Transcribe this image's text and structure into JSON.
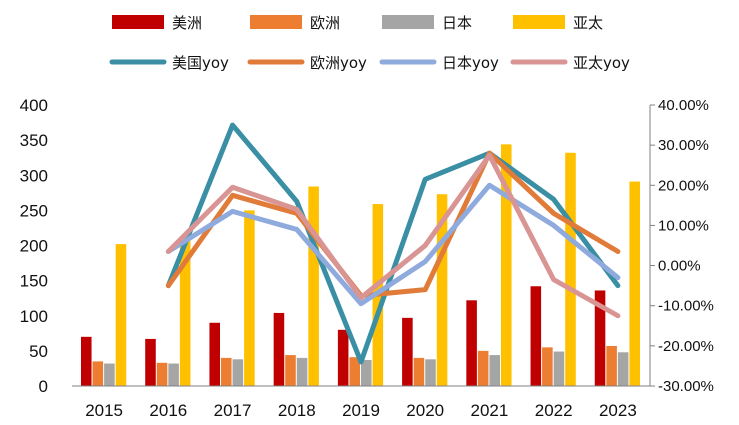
{
  "chart_data": {
    "type": "bar",
    "categories": [
      "2015",
      "2016",
      "2017",
      "2018",
      "2019",
      "2020",
      "2021",
      "2022",
      "2023"
    ],
    "series": [
      {
        "name": "美洲",
        "type": "bar",
        "axis": "left",
        "color": "#c00000",
        "values": [
          70,
          67,
          90,
          104,
          80,
          97,
          122,
          142,
          136
        ]
      },
      {
        "name": "欧洲",
        "type": "bar",
        "axis": "left",
        "color": "#ed7d31",
        "values": [
          35,
          33,
          40,
          44,
          41,
          40,
          50,
          55,
          57
        ]
      },
      {
        "name": "日本",
        "type": "bar",
        "axis": "left",
        "color": "#a5a5a5",
        "values": [
          32,
          32,
          38,
          40,
          37,
          38,
          44,
          49,
          48
        ]
      },
      {
        "name": "亚太",
        "type": "bar",
        "axis": "left",
        "color": "#ffc000",
        "values": [
          202,
          210,
          250,
          284,
          259,
          273,
          344,
          332,
          291
        ]
      },
      {
        "name": "美国yoy",
        "type": "line",
        "axis": "right",
        "color": "#3a8fa5",
        "values": [
          null,
          -5.0,
          35.0,
          16.0,
          -24.0,
          21.5,
          28.0,
          16.5,
          -5.0
        ]
      },
      {
        "name": "欧洲yoy",
        "type": "line",
        "axis": "right",
        "color": "#e07b39",
        "values": [
          null,
          -5.0,
          17.5,
          13.0,
          -7.5,
          -6.0,
          28.0,
          13.0,
          3.5
        ]
      },
      {
        "name": "日本yoy",
        "type": "line",
        "axis": "right",
        "color": "#8faadc",
        "values": [
          null,
          3.5,
          13.5,
          9.0,
          -9.5,
          1.0,
          20.0,
          10.0,
          -3.0
        ]
      },
      {
        "name": "亚太yoy",
        "type": "line",
        "axis": "right",
        "color": "#d99594",
        "values": [
          null,
          3.5,
          19.5,
          14.0,
          -8.0,
          5.0,
          27.5,
          -3.5,
          -12.5
        ]
      }
    ],
    "y_left": {
      "min": 0,
      "max": 400,
      "ticks": [
        "0",
        "50",
        "100",
        "150",
        "200",
        "250",
        "300",
        "350",
        "400"
      ]
    },
    "y_right": {
      "min": -30,
      "max": 40,
      "ticks": [
        "-30.00%",
        "-20.00%",
        "-10.00%",
        "0.00%",
        "10.00%",
        "20.00%",
        "30.00%",
        "40.00%"
      ]
    },
    "grid": false,
    "legend_position": "top"
  }
}
